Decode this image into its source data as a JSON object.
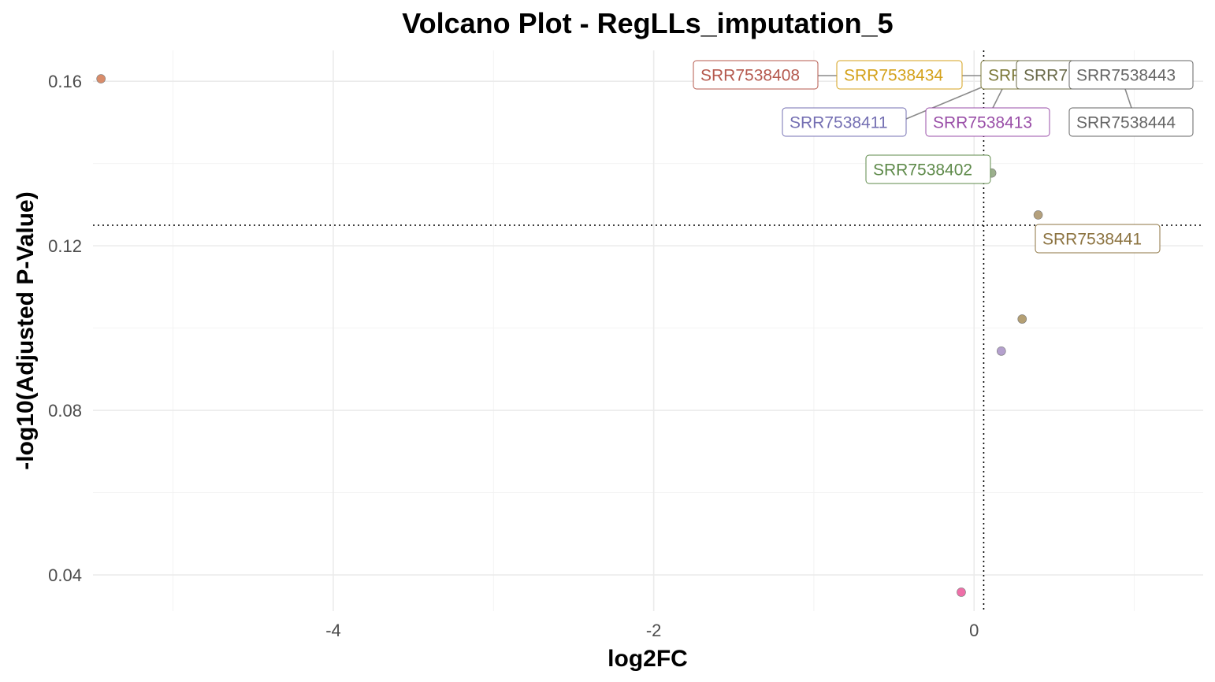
{
  "chart_data": {
    "type": "scatter",
    "title": "Volcano Plot - RegLLs_imputation_5",
    "xlabel": "log2FC",
    "ylabel": "-log10(Adjusted P-Value)",
    "xlim": [
      -5.5,
      1.43
    ],
    "ylim": [
      0.0312,
      0.1675
    ],
    "x_ticks": [
      -4,
      -2,
      0
    ],
    "x_tick_labels": [
      "-4",
      "-2",
      "0"
    ],
    "y_ticks": [
      0.04,
      0.08,
      0.12,
      0.16
    ],
    "y_tick_labels": [
      "0.04",
      "0.08",
      "0.12",
      "0.16"
    ],
    "grid": true,
    "reference_lines": {
      "vertical_x": 0.06,
      "horizontal_y": 0.125
    },
    "legend": "none",
    "points": [
      {
        "x": -5.45,
        "y": 0.1606,
        "color": "#d98c6a"
      },
      {
        "x": 0.11,
        "y": 0.1377,
        "color": "#9cb08d"
      },
      {
        "x": 0.4,
        "y": 0.1275,
        "color": "#b4a07c"
      },
      {
        "x": 0.3,
        "y": 0.1022,
        "color": "#b49f73"
      },
      {
        "x": 0.17,
        "y": 0.0944,
        "color": "#b4a0cd"
      },
      {
        "x": -0.08,
        "y": 0.0358,
        "color": "#ee6fa8"
      }
    ],
    "labels": [
      {
        "text": "SRR7538408",
        "color": "#b5594e"
      },
      {
        "text": "SRR7538434",
        "color": "#d4a21c"
      },
      {
        "text": "SRR",
        "color": "#7d7a3a"
      },
      {
        "text": "SRR7",
        "color": "#6b6b4b"
      },
      {
        "text": "SRR7538443",
        "color": "#666666"
      },
      {
        "text": "SRR7538411",
        "color": "#7570b3"
      },
      {
        "text": "SRR7538413",
        "color": "#9a4fa8"
      },
      {
        "text": "SRR7538444",
        "color": "#666666"
      },
      {
        "text": "SRR7538402",
        "color": "#5e8a4a"
      },
      {
        "text": "SRR7538441",
        "color": "#8c7340"
      }
    ]
  }
}
